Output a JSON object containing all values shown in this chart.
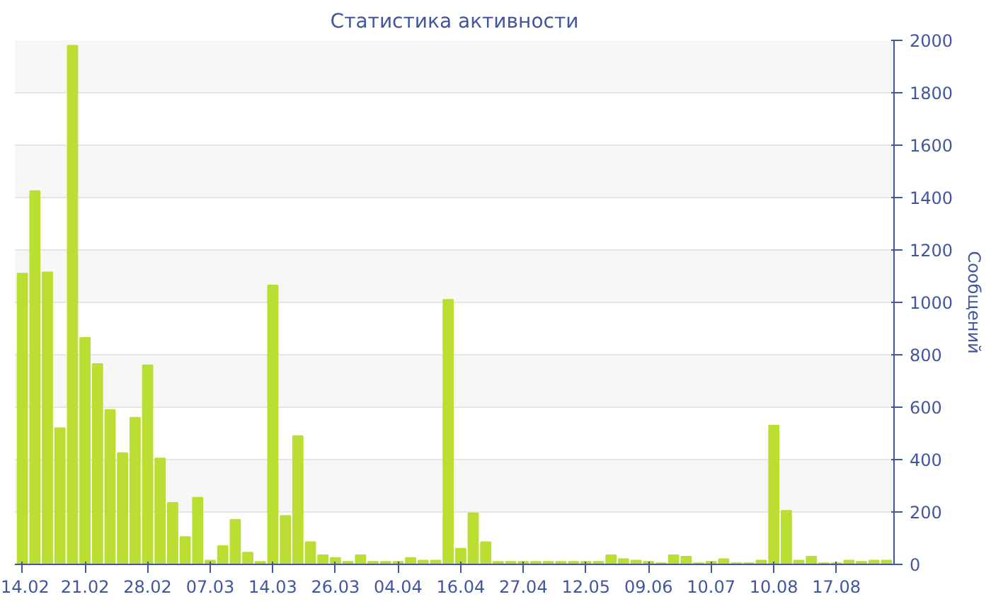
{
  "chart_data": {
    "type": "bar",
    "title": "Статистика активности",
    "ylabel": "Сообщений",
    "categories": [
      "14.02",
      null,
      null,
      null,
      null,
      "21.02",
      null,
      null,
      null,
      null,
      "28.02",
      null,
      null,
      null,
      null,
      "07.03",
      null,
      null,
      null,
      null,
      "14.03",
      null,
      null,
      null,
      null,
      "26.03",
      null,
      null,
      null,
      null,
      "04.04",
      null,
      null,
      null,
      null,
      "16.04",
      null,
      null,
      null,
      null,
      "27.04",
      null,
      null,
      null,
      null,
      "12.05",
      null,
      null,
      null,
      null,
      "09.06",
      null,
      null,
      null,
      null,
      "10.07",
      null,
      null,
      null,
      null,
      "10.08",
      null,
      null,
      null,
      null,
      "17.08",
      null,
      null,
      null,
      null
    ],
    "values": [
      1110,
      1425,
      1115,
      520,
      1980,
      865,
      765,
      590,
      425,
      560,
      760,
      405,
      235,
      105,
      255,
      15,
      70,
      170,
      45,
      10,
      1065,
      185,
      490,
      85,
      35,
      25,
      10,
      35,
      10,
      10,
      10,
      25,
      15,
      15,
      1010,
      60,
      195,
      85,
      10,
      10,
      10,
      10,
      10,
      10,
      10,
      10,
      10,
      35,
      20,
      15,
      10,
      5,
      35,
      30,
      5,
      10,
      20,
      5,
      5,
      15,
      530,
      205,
      15,
      30,
      5,
      5,
      15,
      10,
      15,
      15
    ],
    "color": "#bade31",
    "ylim": [
      0,
      2000
    ],
    "yticks": [
      0,
      200,
      400,
      600,
      800,
      1000,
      1200,
      1400,
      1600,
      1800,
      2000
    ],
    "grid": "y"
  }
}
